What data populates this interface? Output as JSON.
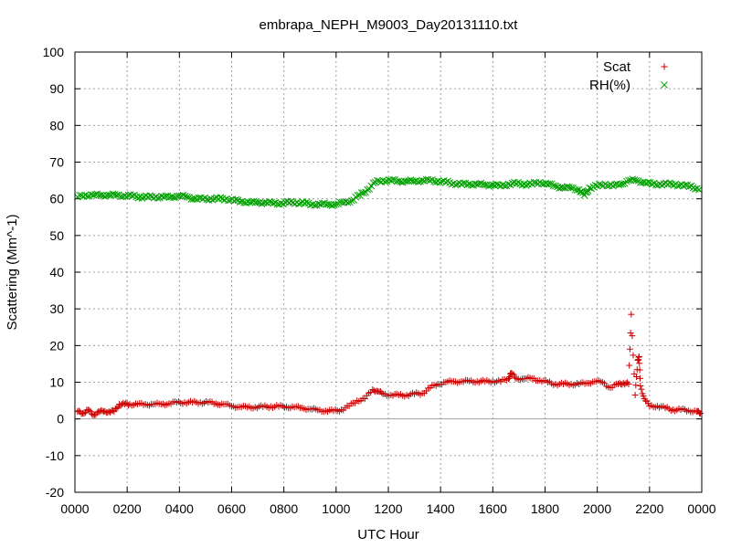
{
  "chart_data": {
    "type": "scatter",
    "title": "embrapa_NEPH_M9003_Day20131110.txt",
    "xlabel": "UTC Hour",
    "ylabel": "Scattering (Mm^-1)",
    "xlim": [
      0,
      24
    ],
    "ylim": [
      -20,
      100
    ],
    "x_tick_labels": [
      "0000",
      "0200",
      "0400",
      "0600",
      "0800",
      "1000",
      "1200",
      "1400",
      "1600",
      "1800",
      "2000",
      "2200",
      "0000"
    ],
    "y_ticks": [
      -20,
      -10,
      0,
      10,
      20,
      30,
      40,
      50,
      60,
      70,
      80,
      90,
      100
    ],
    "grid": true,
    "legend_position": "top-right",
    "series": [
      {
        "name": "Scat",
        "marker": "+",
        "color": "#cc0000",
        "points": [
          [
            0.1,
            2.0
          ],
          [
            0.3,
            1.5
          ],
          [
            0.5,
            2.5
          ],
          [
            0.7,
            1.0
          ],
          [
            0.9,
            2.0
          ],
          [
            1.1,
            2.0
          ],
          [
            1.3,
            2.0
          ],
          [
            1.5,
            2.0
          ],
          [
            1.7,
            4.0
          ],
          [
            1.9,
            4.0
          ],
          [
            2.1,
            4.0
          ],
          [
            2.4,
            4.0
          ],
          [
            2.7,
            4.0
          ],
          [
            3.0,
            4.0
          ],
          [
            3.3,
            4.0
          ],
          [
            3.6,
            4.2
          ],
          [
            3.9,
            4.5
          ],
          [
            4.2,
            4.5
          ],
          [
            4.5,
            4.5
          ],
          [
            4.8,
            4.5
          ],
          [
            5.1,
            4.5
          ],
          [
            5.4,
            4.2
          ],
          [
            5.7,
            4.0
          ],
          [
            6.0,
            3.5
          ],
          [
            6.3,
            3.3
          ],
          [
            6.6,
            3.2
          ],
          [
            6.9,
            3.2
          ],
          [
            7.2,
            3.3
          ],
          [
            7.5,
            3.4
          ],
          [
            7.8,
            3.4
          ],
          [
            8.1,
            3.3
          ],
          [
            8.4,
            3.2
          ],
          [
            8.7,
            3.0
          ],
          [
            9.0,
            2.7
          ],
          [
            9.3,
            2.4
          ],
          [
            9.6,
            2.2
          ],
          [
            9.9,
            2.2
          ],
          [
            10.2,
            2.5
          ],
          [
            10.5,
            3.5
          ],
          [
            10.8,
            5.0
          ],
          [
            11.1,
            5.5
          ],
          [
            11.4,
            8.0
          ],
          [
            11.6,
            7.5
          ],
          [
            11.8,
            6.8
          ],
          [
            12.1,
            6.5
          ],
          [
            12.4,
            6.5
          ],
          [
            12.7,
            6.5
          ],
          [
            13.0,
            6.8
          ],
          [
            13.3,
            7.0
          ],
          [
            13.6,
            8.5
          ],
          [
            13.9,
            9.5
          ],
          [
            14.2,
            10.0
          ],
          [
            14.5,
            10.2
          ],
          [
            14.8,
            10.2
          ],
          [
            15.1,
            10.3
          ],
          [
            15.4,
            10.2
          ],
          [
            15.7,
            10.2
          ],
          [
            16.0,
            10.3
          ],
          [
            16.3,
            10.2
          ],
          [
            16.6,
            11.0
          ],
          [
            16.7,
            12.5
          ],
          [
            16.9,
            11.0
          ],
          [
            17.2,
            11.0
          ],
          [
            17.5,
            11.0
          ],
          [
            17.8,
            10.5
          ],
          [
            18.1,
            10.0
          ],
          [
            18.4,
            9.5
          ],
          [
            18.7,
            9.5
          ],
          [
            19.0,
            9.5
          ],
          [
            19.3,
            9.5
          ],
          [
            19.6,
            9.8
          ],
          [
            19.9,
            10.2
          ],
          [
            20.2,
            10.0
          ],
          [
            20.5,
            8.5
          ],
          [
            20.8,
            9.5
          ],
          [
            21.0,
            9.8
          ],
          [
            21.2,
            9.5
          ],
          [
            21.3,
            28.5
          ],
          [
            21.45,
            6.5
          ],
          [
            21.55,
            16.0
          ],
          [
            21.6,
            17.0
          ],
          [
            21.65,
            9.0
          ],
          [
            21.8,
            5.5
          ],
          [
            22.0,
            3.5
          ],
          [
            22.3,
            3.5
          ],
          [
            22.6,
            3.0
          ],
          [
            22.9,
            2.5
          ],
          [
            23.2,
            2.5
          ],
          [
            23.5,
            2.3
          ],
          [
            23.8,
            2.0
          ],
          [
            23.95,
            1.5
          ]
        ]
      },
      {
        "name": "RH(%)",
        "marker": "x",
        "color": "#00a000",
        "points": [
          [
            0.1,
            60.5
          ],
          [
            0.4,
            61.0
          ],
          [
            0.7,
            61.0
          ],
          [
            1.0,
            61.0
          ],
          [
            1.3,
            61.0
          ],
          [
            1.6,
            61.0
          ],
          [
            1.9,
            60.8
          ],
          [
            2.2,
            60.8
          ],
          [
            2.5,
            60.5
          ],
          [
            2.8,
            60.5
          ],
          [
            3.1,
            60.5
          ],
          [
            3.4,
            60.5
          ],
          [
            3.7,
            60.5
          ],
          [
            4.0,
            60.8
          ],
          [
            4.3,
            60.5
          ],
          [
            4.6,
            60.0
          ],
          [
            4.9,
            60.0
          ],
          [
            5.2,
            60.0
          ],
          [
            5.5,
            60.0
          ],
          [
            5.8,
            60.0
          ],
          [
            6.1,
            59.5
          ],
          [
            6.4,
            59.3
          ],
          [
            6.7,
            59.0
          ],
          [
            7.0,
            59.0
          ],
          [
            7.3,
            59.0
          ],
          [
            7.6,
            58.8
          ],
          [
            7.9,
            58.8
          ],
          [
            8.2,
            59.0
          ],
          [
            8.5,
            59.0
          ],
          [
            8.8,
            58.8
          ],
          [
            9.1,
            58.5
          ],
          [
            9.4,
            58.5
          ],
          [
            9.7,
            58.5
          ],
          [
            10.0,
            58.5
          ],
          [
            10.3,
            59.0
          ],
          [
            10.6,
            59.5
          ],
          [
            10.9,
            61.0
          ],
          [
            11.2,
            62.5
          ],
          [
            11.5,
            64.5
          ],
          [
            11.8,
            65.0
          ],
          [
            12.1,
            65.0
          ],
          [
            12.4,
            64.8
          ],
          [
            12.7,
            64.8
          ],
          [
            13.0,
            64.8
          ],
          [
            13.3,
            65.0
          ],
          [
            13.6,
            65.0
          ],
          [
            13.9,
            64.8
          ],
          [
            14.2,
            64.5
          ],
          [
            14.5,
            64.2
          ],
          [
            14.8,
            64.0
          ],
          [
            15.1,
            64.0
          ],
          [
            15.4,
            64.0
          ],
          [
            15.7,
            63.8
          ],
          [
            16.0,
            63.8
          ],
          [
            16.3,
            63.5
          ],
          [
            16.6,
            64.0
          ],
          [
            16.9,
            64.2
          ],
          [
            17.2,
            64.0
          ],
          [
            17.5,
            64.0
          ],
          [
            17.8,
            64.5
          ],
          [
            18.1,
            64.0
          ],
          [
            18.4,
            63.5
          ],
          [
            18.7,
            63.0
          ],
          [
            19.0,
            63.0
          ],
          [
            19.3,
            62.5
          ],
          [
            19.5,
            61.0
          ],
          [
            19.7,
            63.0
          ],
          [
            20.0,
            63.5
          ],
          [
            20.3,
            64.0
          ],
          [
            20.6,
            63.5
          ],
          [
            20.9,
            64.0
          ],
          [
            21.2,
            65.0
          ],
          [
            21.5,
            65.0
          ],
          [
            21.8,
            64.5
          ],
          [
            22.1,
            64.0
          ],
          [
            22.4,
            64.0
          ],
          [
            22.7,
            64.0
          ],
          [
            23.0,
            64.0
          ],
          [
            23.3,
            63.5
          ],
          [
            23.6,
            63.5
          ],
          [
            23.9,
            62.5
          ]
        ]
      }
    ]
  }
}
